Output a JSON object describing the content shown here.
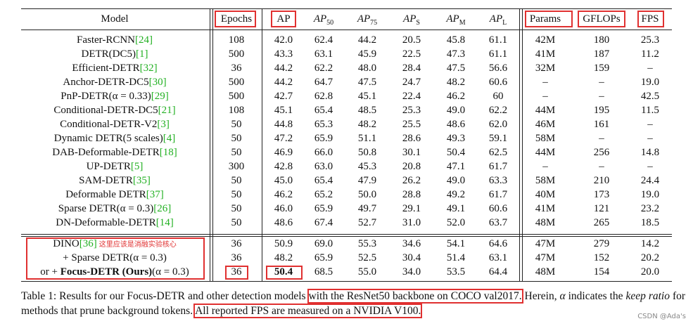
{
  "table": {
    "headers": [
      {
        "text": "Model"
      },
      {
        "text": "Epochs"
      },
      {
        "text": "AP"
      },
      {
        "text": "AP",
        "sub": "50"
      },
      {
        "text": "AP",
        "sub": "75"
      },
      {
        "text": "AP",
        "sub": "S"
      },
      {
        "text": "AP",
        "sub": "M"
      },
      {
        "text": "AP",
        "sub": "L"
      },
      {
        "text": "Params"
      },
      {
        "text": "GFLOPs"
      },
      {
        "text": "FPS"
      }
    ],
    "rows": [
      {
        "model": "Faster-RCNN",
        "cite": "[24]",
        "cells": [
          "108",
          "42.0",
          "62.4",
          "44.2",
          "20.5",
          "45.8",
          "61.1",
          "42M",
          "180",
          "25.3"
        ]
      },
      {
        "model": "DETR(DC5)",
        "cite": "[1]",
        "cells": [
          "500",
          "43.3",
          "63.1",
          "45.9",
          "22.5",
          "47.3",
          "61.1",
          "41M",
          "187",
          "11.2"
        ]
      },
      {
        "model": "Efficient-DETR",
        "cite": "[32]",
        "cells": [
          "36",
          "44.2",
          "62.2",
          "48.0",
          "28.4",
          "47.5",
          "56.6",
          "32M",
          "159",
          "–"
        ]
      },
      {
        "model": "Anchor-DETR-DC5",
        "cite": "[30]",
        "cells": [
          "500",
          "44.2",
          "64.7",
          "47.5",
          "24.7",
          "48.2",
          "60.6",
          "–",
          "–",
          "19.0"
        ]
      },
      {
        "model": "PnP-DETR(α = 0.33)",
        "cite": "[29]",
        "cells": [
          "500",
          "42.7",
          "62.8",
          "45.1",
          "22.4",
          "46.2",
          "60",
          "–",
          "–",
          "42.5"
        ]
      },
      {
        "model": "Conditional-DETR-DC5",
        "cite": "[21]",
        "cells": [
          "108",
          "45.1",
          "65.4",
          "48.5",
          "25.3",
          "49.0",
          "62.2",
          "44M",
          "195",
          "11.5"
        ]
      },
      {
        "model": "Conditional-DETR-V2",
        "cite": "[3]",
        "cells": [
          "50",
          "44.8",
          "65.3",
          "48.2",
          "25.5",
          "48.6",
          "62.0",
          "46M",
          "161",
          "–"
        ]
      },
      {
        "model": "Dynamic DETR(5 scales)",
        "cite": "[4]",
        "cells": [
          "50",
          "47.2",
          "65.9",
          "51.1",
          "28.6",
          "49.3",
          "59.1",
          "58M",
          "–",
          "–"
        ]
      },
      {
        "model": "DAB-Deformable-DETR",
        "cite": "[18]",
        "cells": [
          "50",
          "46.9",
          "66.0",
          "50.8",
          "30.1",
          "50.4",
          "62.5",
          "44M",
          "256",
          "14.8"
        ]
      },
      {
        "model": "UP-DETR",
        "cite": "[5]",
        "cells": [
          "300",
          "42.8",
          "63.0",
          "45.3",
          "20.8",
          "47.1",
          "61.7",
          "–",
          "–",
          "–"
        ]
      },
      {
        "model": "SAM-DETR",
        "cite": "[35]",
        "cells": [
          "50",
          "45.0",
          "65.4",
          "47.9",
          "26.2",
          "49.0",
          "63.3",
          "58M",
          "210",
          "24.4"
        ]
      },
      {
        "model": "Deformable DETR",
        "cite": "[37]",
        "cells": [
          "50",
          "46.2",
          "65.2",
          "50.0",
          "28.8",
          "49.2",
          "61.7",
          "40M",
          "173",
          "19.0"
        ]
      },
      {
        "model": "Sparse DETR(α = 0.3)",
        "cite": "[26]",
        "cells": [
          "50",
          "46.0",
          "65.9",
          "49.7",
          "29.1",
          "49.1",
          "60.6",
          "41M",
          "121",
          "23.2"
        ]
      },
      {
        "model": "DN-Deformable-DETR",
        "cite": "[14]",
        "cells": [
          "50",
          "48.6",
          "67.4",
          "52.7",
          "31.0",
          "52.0",
          "63.7",
          "48M",
          "265",
          "18.5"
        ]
      },
      {
        "model": "DINO",
        "cite": "[36]",
        "note": "这里应该是消融实验核心",
        "cells": [
          "36",
          "50.9",
          "69.0",
          "55.3",
          "34.6",
          "54.1",
          "64.6",
          "47M",
          "279",
          "14.2"
        ]
      },
      {
        "model": "+ Sparse DETR(α = 0.3)",
        "cells": [
          "36",
          "48.2",
          "65.9",
          "52.5",
          "30.4",
          "51.4",
          "63.1",
          "47M",
          "152",
          "20.2"
        ]
      },
      {
        "prefix": "or + ",
        "bold": "Focus-DETR (Ours)",
        "suffix": "(α = 0.3)",
        "cells": [
          "36",
          "50.4",
          "68.5",
          "55.0",
          "34.0",
          "53.5",
          "64.4",
          "48M",
          "154",
          "20.0"
        ],
        "boldcells": [
          1
        ]
      }
    ]
  },
  "caption": {
    "a": "Table 1: Results for our Focus-DETR and other detection models ",
    "b": "with the ResNet50 backbone on COCO val2017.",
    "c": " Herein, ",
    "d": "α",
    "e": " indicates the ",
    "f": "keep ratio",
    "g": " for methods that prune background tokens. ",
    "h": "All reported FPS are measured on a NVIDIA V100."
  },
  "watermark": "CSDN @Ada's"
}
